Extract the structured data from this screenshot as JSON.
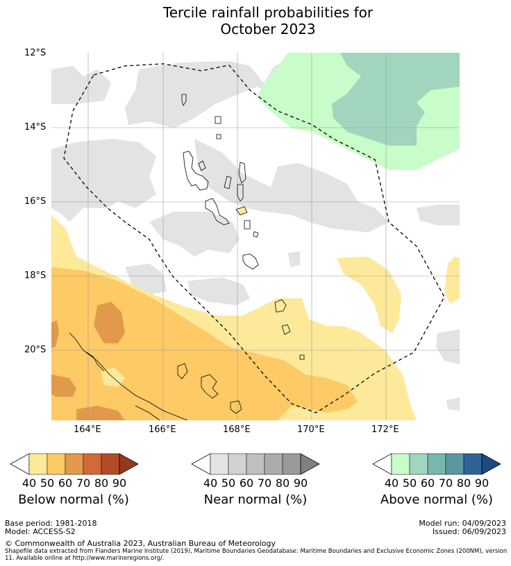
{
  "title": {
    "line1": "Tercile rainfall probabilities for",
    "line2": "October 2023"
  },
  "map": {
    "lat_labels": [
      "12°S",
      "14°S",
      "16°S",
      "18°S",
      "20°S"
    ],
    "lon_labels": [
      "164°E",
      "166°E",
      "168°E",
      "170°E",
      "172°E"
    ],
    "extent": {
      "lon_min": 163.0,
      "lon_max": 174.0,
      "lat_min": -21.9,
      "lat_max": -12.0
    }
  },
  "colorbars": [
    {
      "label": "Below normal (%)",
      "ticks": [
        "40",
        "50",
        "60",
        "70",
        "80",
        "90"
      ],
      "colors": [
        "#ffffff",
        "#fde99a",
        "#fdca65",
        "#e19a4b",
        "#d16a38",
        "#b24c27",
        "#96381c"
      ]
    },
    {
      "label": "Near normal (%)",
      "ticks": [
        "40",
        "50",
        "60",
        "70",
        "80",
        "90"
      ],
      "colors": [
        "#ffffff",
        "#e3e3e3",
        "#d2d2d2",
        "#bfbfbf",
        "#acacac",
        "#9a9a9a",
        "#808080"
      ]
    },
    {
      "label": "Above normal (%)",
      "ticks": [
        "40",
        "50",
        "60",
        "70",
        "80",
        "90"
      ],
      "colors": [
        "#ffffff",
        "#c8fcc8",
        "#a0d6bd",
        "#76b8ad",
        "#5c97a1",
        "#2f6397",
        "#1c4b83"
      ]
    }
  ],
  "footer": {
    "base_period": "Base period: 1981-2018",
    "model": "Model: ACCESS-S2",
    "model_run": "Model run: 04/09/2023",
    "issued": "Issued: 06/09/2023",
    "copyright": "© Commonwealth of Australia 2023, Australian Bureau of Meteorology",
    "shapefile": "Shapefile data extracted from Flanders Marine Institute (2019), Maritime Boundaries Geodatabase: Maritime Boundaries and Exclusive Economic Zones (200NM), version 11. Available online at http://www.marineregions.org/."
  }
}
